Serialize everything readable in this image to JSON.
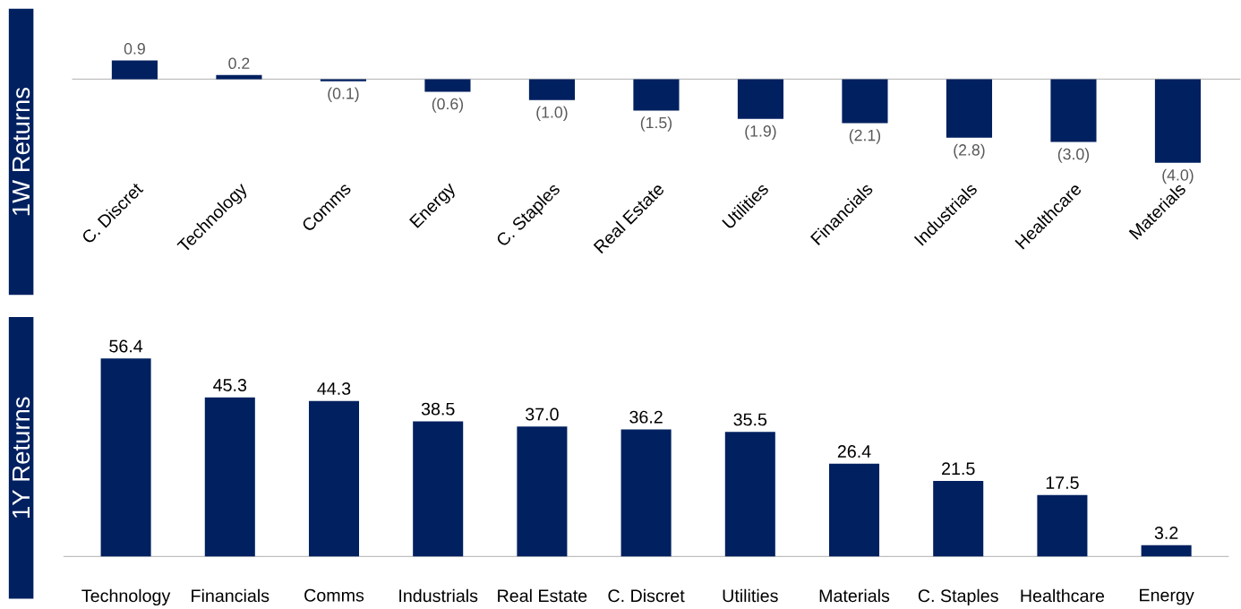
{
  "chart_data": [
    {
      "type": "bar",
      "ylabel": "1W Returns",
      "categories": [
        "C. Discret",
        "Technology",
        "Comms",
        "Energy",
        "C. Staples",
        "Real Estate",
        "Utilities",
        "Financials",
        "Industrials",
        "Healthcare",
        "Materials"
      ],
      "values": [
        0.9,
        0.2,
        -0.1,
        -0.6,
        -1.0,
        -1.5,
        -1.9,
        -2.1,
        -2.8,
        -3.0,
        -4.0
      ],
      "value_labels": [
        "0.9",
        "0.2",
        "(0.1)",
        "(0.6)",
        "(1.0)",
        "(1.5)",
        "(1.9)",
        "(2.1)",
        "(2.8)",
        "(3.0)",
        "(4.0)"
      ],
      "color": "#002060",
      "tick_labels": "x"
    },
    {
      "type": "bar",
      "ylabel": "1Y Returns",
      "categories": [
        "Technology",
        "Financials",
        "Comms",
        "Industrials",
        "Real Estate",
        "C. Discret",
        "Utilities",
        "Materials",
        "C. Staples",
        "Healthcare",
        "Energy"
      ],
      "values": [
        56.4,
        45.3,
        44.3,
        38.5,
        37.0,
        36.2,
        35.5,
        26.4,
        21.5,
        17.5,
        3.2
      ],
      "value_labels": [
        "56.4",
        "45.3",
        "44.3",
        "38.5",
        "37.0",
        "36.2",
        "35.5",
        "26.4",
        "21.5",
        "17.5",
        "3.2"
      ],
      "color": "#002060",
      "tick_labels": "x"
    }
  ]
}
